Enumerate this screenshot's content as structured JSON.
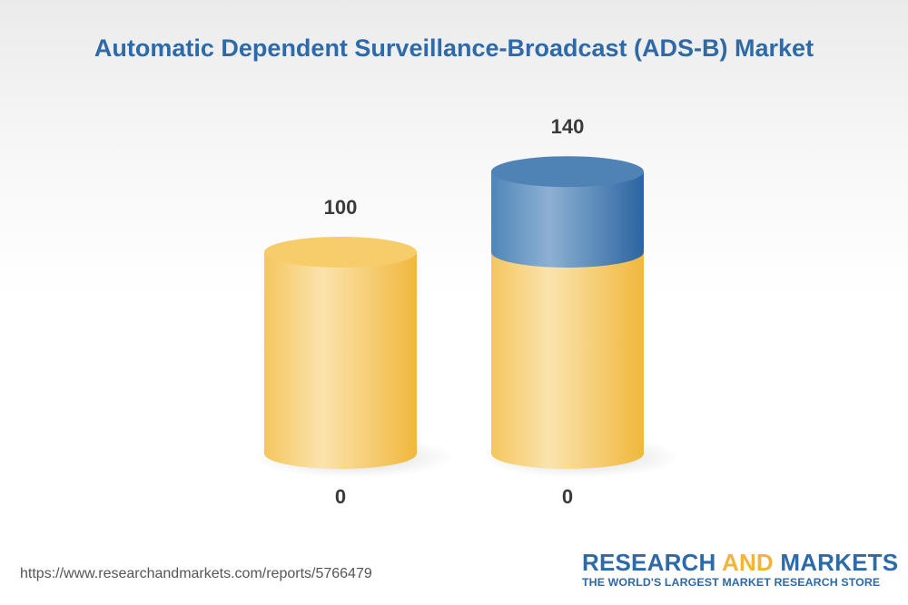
{
  "chart_data": {
    "type": "bar",
    "title": "Automatic Dependent Surveillance-Broadcast (ADS-B) Market",
    "categories": [
      "",
      ""
    ],
    "base_labels": [
      "0",
      "0"
    ],
    "series": [
      {
        "values": [
          100,
          100
        ],
        "color": "#f2c14f"
      },
      {
        "values": [
          0,
          40
        ],
        "color": "#2e6aa8"
      }
    ],
    "total_labels": [
      "100",
      "140"
    ],
    "ylim": [
      0,
      140
    ],
    "grid": false,
    "legend": "none"
  },
  "footer": {
    "source_url": "https://www.researchandmarkets.com/reports/5766479"
  },
  "brand": {
    "name_part1": "RESEARCH ",
    "name_accent": "AND",
    "name_part2": " MARKETS",
    "tagline": "THE WORLD'S LARGEST MARKET RESEARCH STORE",
    "accent_color": "#f2b53a",
    "primary_color": "#2e6aa8"
  }
}
